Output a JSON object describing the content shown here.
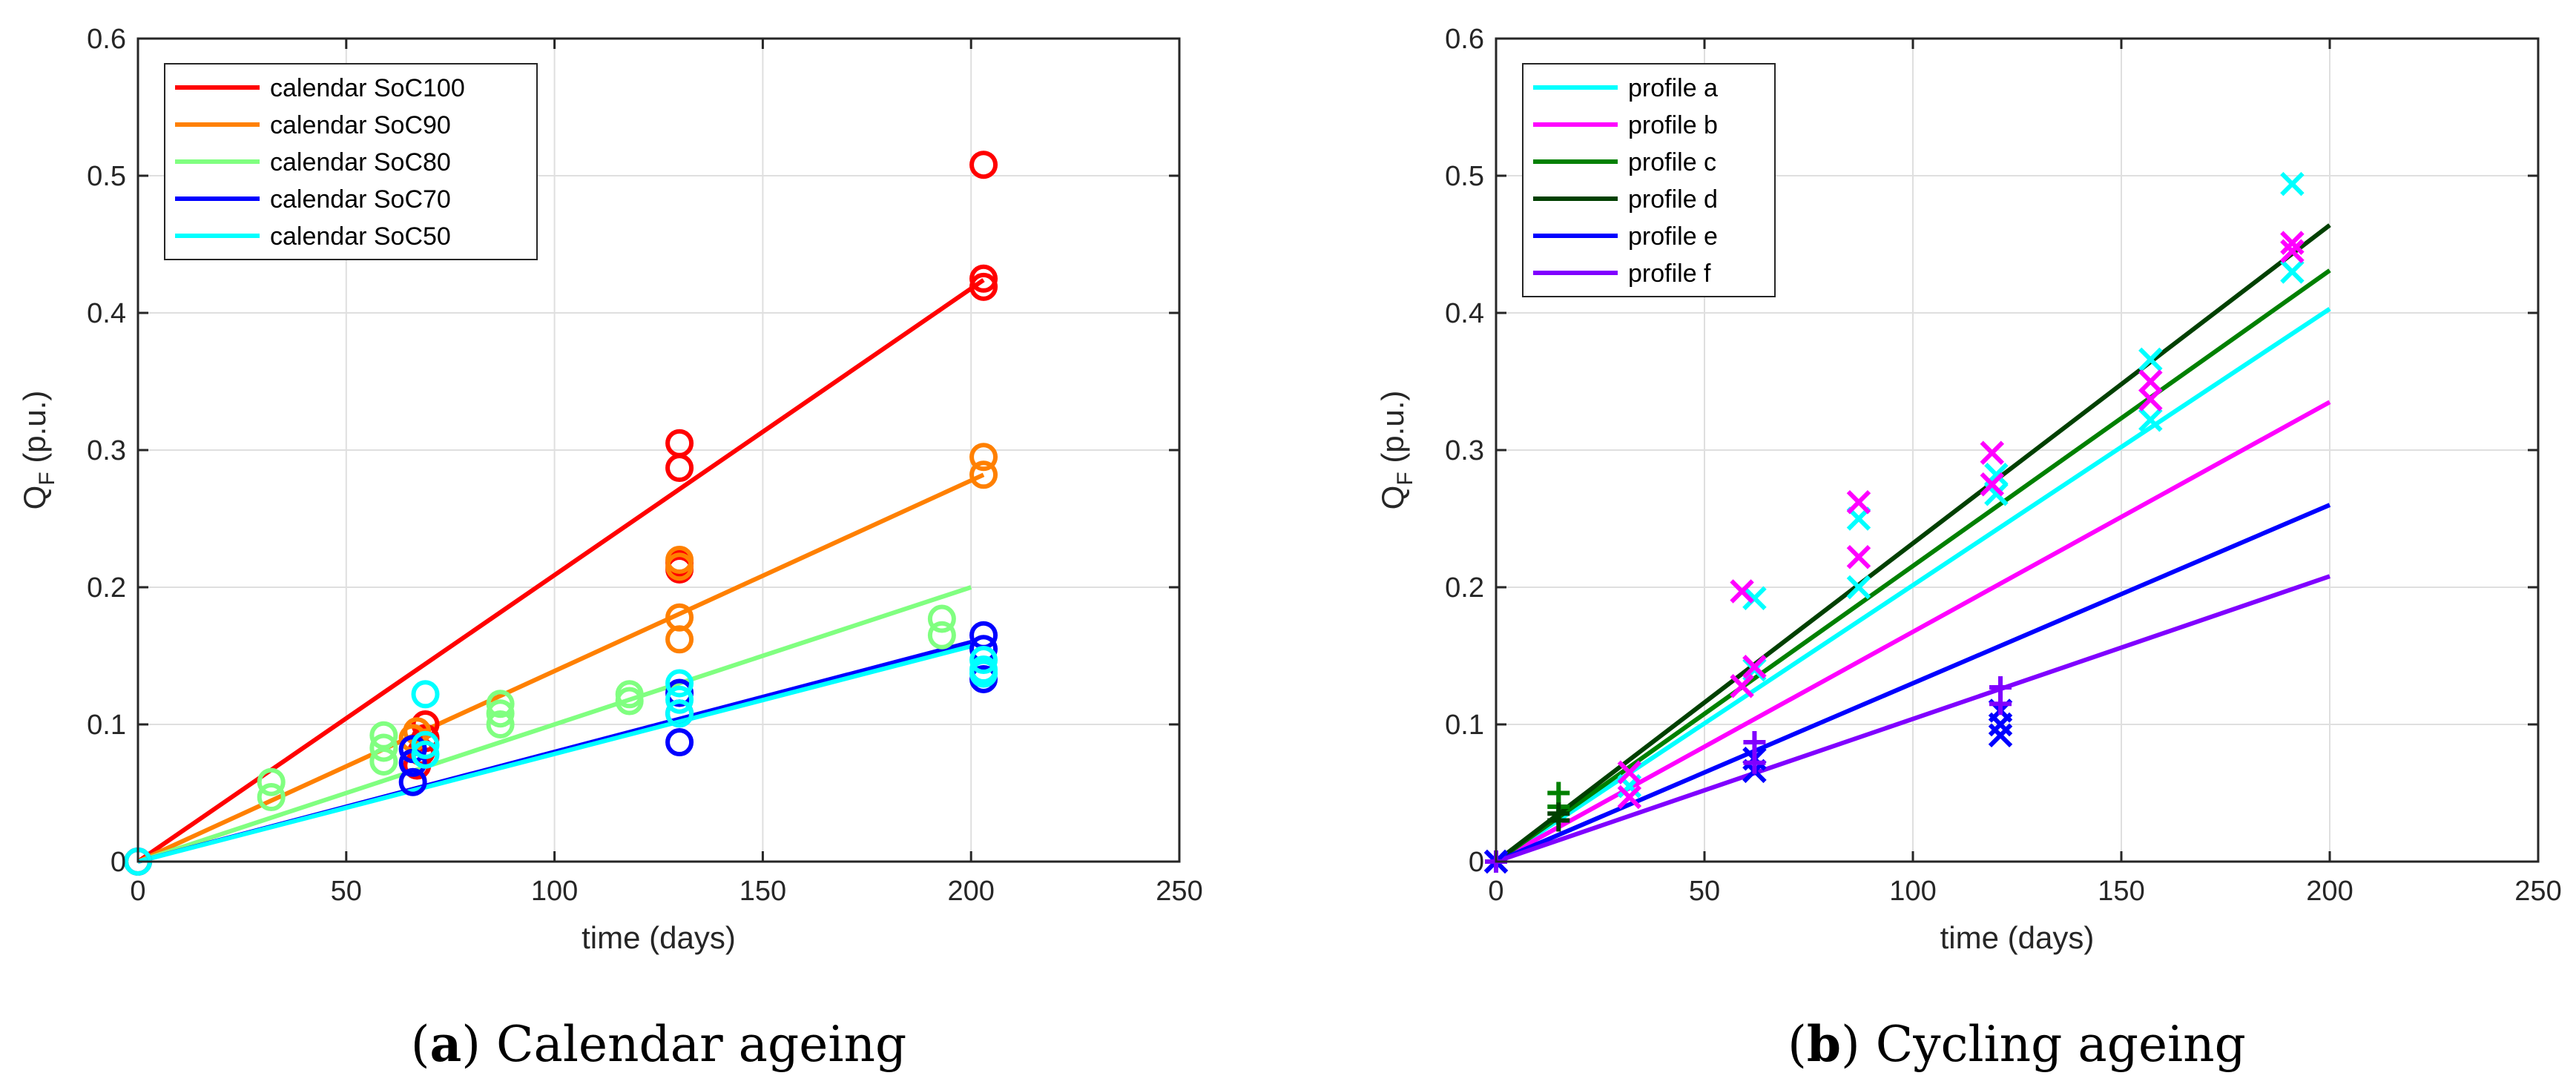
{
  "chart_data": [
    {
      "type": "scatter",
      "caption_letter": "a",
      "caption_text": "Calendar ageing",
      "xlabel": "time (days)",
      "ylabel": "Q",
      "ylabel_sub": "F",
      "ylabel_suffix": " (p.u.)",
      "xlim": [
        0,
        250
      ],
      "ylim": [
        0,
        0.6
      ],
      "xticks": [
        0,
        50,
        100,
        150,
        200,
        250
      ],
      "yticks": [
        0,
        0.1,
        0.2,
        0.3,
        0.4,
        0.5,
        0.6
      ],
      "grid": true,
      "legend_position": "top-left",
      "marker": "circle",
      "series": [
        {
          "name": "calendar SoC100",
          "color": "#ff0000",
          "line": [
            [
              0,
              0
            ],
            [
              203,
              0.424
            ]
          ],
          "points": [
            [
              0,
              0
            ],
            [
              67,
              0.07
            ],
            [
              68,
              0.08
            ],
            [
              69,
              0.1
            ],
            [
              69,
              0.09
            ],
            [
              130,
              0.305
            ],
            [
              130,
              0.287
            ],
            [
              130,
              0.213
            ],
            [
              130,
              0.218
            ],
            [
              203,
              0.508
            ],
            [
              203,
              0.425
            ],
            [
              203,
              0.419
            ]
          ]
        },
        {
          "name": "calendar SoC90",
          "color": "#ff8000",
          "line": [
            [
              0,
              0
            ],
            [
              203,
              0.282
            ]
          ],
          "points": [
            [
              0,
              0
            ],
            [
              66,
              0.09
            ],
            [
              67,
              0.095
            ],
            [
              130,
              0.22
            ],
            [
              130,
              0.215
            ],
            [
              130,
              0.178
            ],
            [
              130,
              0.162
            ],
            [
              203,
              0.295
            ],
            [
              203,
              0.282
            ]
          ]
        },
        {
          "name": "calendar SoC80",
          "color": "#80ff80",
          "line": [
            [
              0,
              0
            ],
            [
              200,
              0.2
            ]
          ],
          "points": [
            [
              0,
              0
            ],
            [
              32,
              0.058
            ],
            [
              32,
              0.047
            ],
            [
              59,
              0.092
            ],
            [
              59,
              0.083
            ],
            [
              59,
              0.073
            ],
            [
              87,
              0.115
            ],
            [
              87,
              0.108
            ],
            [
              87,
              0.1
            ],
            [
              118,
              0.122
            ],
            [
              118,
              0.117
            ],
            [
              193,
              0.177
            ],
            [
              193,
              0.165
            ]
          ]
        },
        {
          "name": "calendar SoC70",
          "color": "#0000ff",
          "line": [
            [
              0,
              0
            ],
            [
              200,
              0.16
            ]
          ],
          "points": [
            [
              0,
              0
            ],
            [
              66,
              0.082
            ],
            [
              66,
              0.072
            ],
            [
              66,
              0.058
            ],
            [
              130,
              0.123
            ],
            [
              130,
              0.108
            ],
            [
              130,
              0.087
            ],
            [
              203,
              0.165
            ],
            [
              203,
              0.155
            ],
            [
              203,
              0.133
            ]
          ]
        },
        {
          "name": "calendar SoC50",
          "color": "#00ffff",
          "line": [
            [
              0,
              0
            ],
            [
              200,
              0.157
            ]
          ],
          "points": [
            [
              0,
              0
            ],
            [
              69,
              0.122
            ],
            [
              69,
              0.085
            ],
            [
              69,
              0.078
            ],
            [
              130,
              0.13
            ],
            [
              130,
              0.118
            ],
            [
              130,
              0.108
            ],
            [
              203,
              0.147
            ],
            [
              203,
              0.14
            ],
            [
              203,
              0.137
            ]
          ]
        }
      ]
    },
    {
      "type": "scatter",
      "caption_letter": "b",
      "caption_text": "Cycling ageing",
      "xlabel": "time (days)",
      "ylabel": "Q",
      "ylabel_sub": "F",
      "ylabel_suffix": " (p.u.)",
      "xlim": [
        0,
        250
      ],
      "ylim": [
        0,
        0.6
      ],
      "xticks": [
        0,
        50,
        100,
        150,
        200,
        250
      ],
      "yticks": [
        0,
        0.1,
        0.2,
        0.3,
        0.4,
        0.5,
        0.6
      ],
      "grid": true,
      "legend_position": "top-left",
      "series": [
        {
          "name": "profile a",
          "color": "#00ffff",
          "marker": "x",
          "line": [
            [
              0,
              0
            ],
            [
              200,
              0.403
            ]
          ],
          "points": [
            [
              0,
              0
            ],
            [
              32,
              0.055
            ],
            [
              62,
              0.192
            ],
            [
              62,
              0.14
            ],
            [
              87,
              0.25
            ],
            [
              87,
              0.2
            ],
            [
              120,
              0.282
            ],
            [
              120,
              0.268
            ],
            [
              157,
              0.366
            ],
            [
              157,
              0.322
            ],
            [
              191,
              0.494
            ],
            [
              191,
              0.43
            ]
          ]
        },
        {
          "name": "profile b",
          "color": "#ff00ff",
          "marker": "x",
          "line": [
            [
              0,
              0
            ],
            [
              200,
              0.335
            ]
          ],
          "points": [
            [
              0,
              0
            ],
            [
              32,
              0.065
            ],
            [
              32,
              0.047
            ],
            [
              59,
              0.197
            ],
            [
              59,
              0.128
            ],
            [
              62,
              0.142
            ],
            [
              87,
              0.262
            ],
            [
              87,
              0.222
            ],
            [
              119,
              0.298
            ],
            [
              119,
              0.275
            ],
            [
              157,
              0.35
            ],
            [
              157,
              0.337
            ],
            [
              191,
              0.451
            ],
            [
              191,
              0.445
            ]
          ]
        },
        {
          "name": "profile c",
          "color": "#008000",
          "marker": "plus",
          "line": [
            [
              0,
              0
            ],
            [
              200,
              0.431
            ]
          ],
          "points": [
            [
              0,
              0
            ],
            [
              15,
              0.05
            ],
            [
              15,
              0.04
            ]
          ]
        },
        {
          "name": "profile d",
          "color": "#004000",
          "marker": "plus",
          "line": [
            [
              0,
              0
            ],
            [
              200,
              0.464
            ]
          ],
          "points": [
            [
              0,
              0
            ],
            [
              15,
              0.035
            ],
            [
              15,
              0.03
            ]
          ]
        },
        {
          "name": "profile e",
          "color": "#0000ff",
          "marker": "x",
          "line": [
            [
              0,
              0
            ],
            [
              200,
              0.26
            ]
          ],
          "points": [
            [
              0,
              0
            ],
            [
              62,
              0.075
            ],
            [
              62,
              0.066
            ],
            [
              121,
              0.11
            ],
            [
              121,
              0.1
            ],
            [
              121,
              0.092
            ]
          ]
        },
        {
          "name": "profile f",
          "color": "#8000ff",
          "marker": "plus",
          "line": [
            [
              0,
              0
            ],
            [
              200,
              0.208
            ]
          ],
          "points": [
            [
              0,
              0
            ],
            [
              62,
              0.087
            ],
            [
              62,
              0.072
            ],
            [
              121,
              0.127
            ],
            [
              121,
              0.115
            ]
          ]
        }
      ]
    }
  ]
}
